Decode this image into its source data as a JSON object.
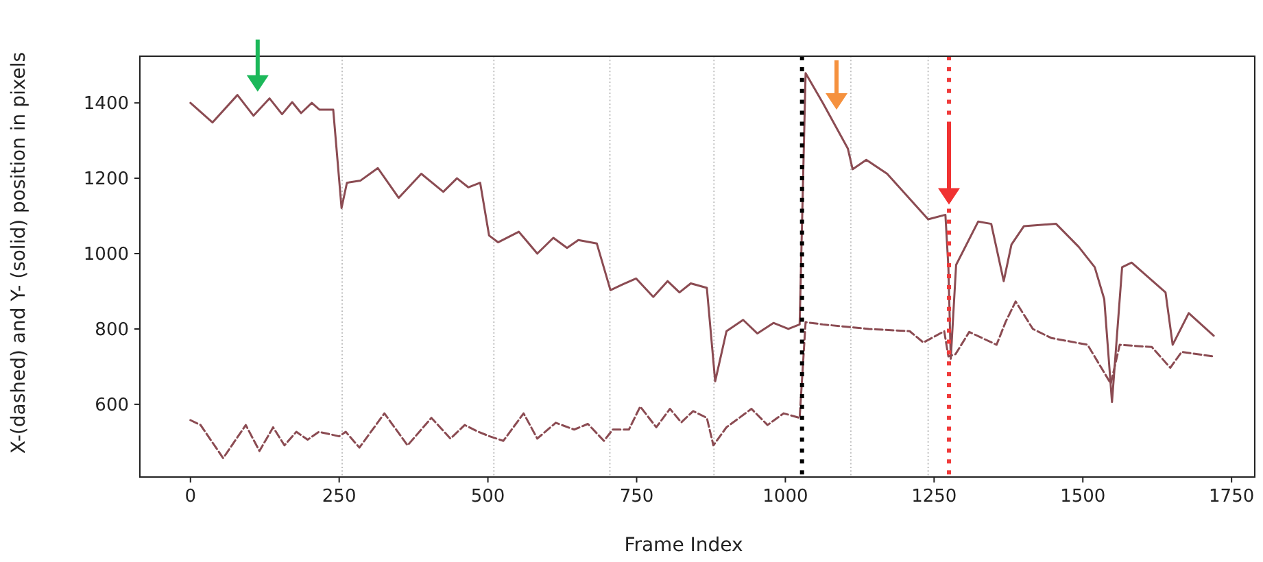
{
  "chart_data": {
    "type": "line",
    "xlabel": "Frame Index",
    "ylabel": "X-(dashed) and Y- (solid) position in pixels",
    "xlim": [
      -85,
      1789
    ],
    "ylim": [
      407,
      1524
    ],
    "xticks": [
      0,
      250,
      500,
      750,
      1000,
      1250,
      1500,
      1750
    ],
    "yticks": [
      600,
      800,
      1000,
      1200,
      1400
    ],
    "grid": false,
    "series": [
      {
        "color": "#8b4b52",
        "line_style": "solid",
        "x": [
          0,
          37,
          79,
          106,
          133,
          154,
          171,
          186,
          204,
          217,
          240,
          254,
          263,
          286,
          315,
          350,
          388,
          425,
          448,
          467,
          487,
          502,
          517,
          552,
          583,
          610,
          633,
          652,
          683,
          706,
          726,
          749,
          778,
          802,
          822,
          841,
          868,
          882,
          901,
          929,
          953,
          980,
          1005,
          1024,
          1034,
          1063,
          1105,
          1113,
          1136,
          1171,
          1240,
          1269,
          1274,
          1278,
          1287,
          1324,
          1346,
          1367,
          1380,
          1401,
          1455,
          1493,
          1520,
          1536,
          1549,
          1566,
          1582,
          1639,
          1651,
          1678,
          1720
        ],
        "values": [
          1400,
          1348,
          1421,
          1366,
          1412,
          1370,
          1402,
          1373,
          1400,
          1382,
          1382,
          1121,
          1188,
          1194,
          1227,
          1148,
          1212,
          1164,
          1200,
          1176,
          1188,
          1048,
          1030,
          1058,
          1000,
          1042,
          1015,
          1036,
          1027,
          903,
          918,
          934,
          885,
          927,
          897,
          921,
          909,
          661,
          794,
          824,
          788,
          816,
          800,
          812,
          1479,
          1400,
          1279,
          1224,
          1249,
          1212,
          1091,
          1103,
          964,
          721,
          970,
          1085,
          1079,
          927,
          1024,
          1073,
          1079,
          1018,
          964,
          879,
          606,
          964,
          976,
          897,
          758,
          842,
          782
        ]
      },
      {
        "color": "#8b4b52",
        "line_style": "dashed",
        "x": [
          0,
          17,
          55,
          93,
          116,
          139,
          158,
          178,
          197,
          216,
          250,
          261,
          284,
          326,
          365,
          405,
          437,
          461,
          484,
          503,
          526,
          560,
          583,
          614,
          645,
          668,
          695,
          710,
          737,
          756,
          783,
          806,
          825,
          845,
          868,
          879,
          901,
          943,
          970,
          997,
          1024,
          1034,
          1063,
          1140,
          1209,
          1232,
          1267,
          1274,
          1286,
          1309,
          1355,
          1370,
          1387,
          1416,
          1447,
          1508,
          1531,
          1547,
          1562,
          1616,
          1647,
          1666,
          1720
        ],
        "values": [
          558,
          545,
          457,
          545,
          476,
          539,
          491,
          527,
          506,
          527,
          515,
          527,
          485,
          576,
          491,
          564,
          509,
          545,
          527,
          515,
          503,
          576,
          509,
          551,
          533,
          548,
          503,
          533,
          533,
          594,
          539,
          588,
          552,
          582,
          564,
          491,
          539,
          588,
          545,
          576,
          564,
          818,
          812,
          800,
          794,
          764,
          794,
          727,
          733,
          792,
          758,
          818,
          873,
          800,
          776,
          758,
          697,
          655,
          758,
          752,
          697,
          739,
          727
        ]
      }
    ],
    "ref_lines": [
      {
        "axis": "x",
        "value": 255,
        "color": "#c0c0c0",
        "line_style": "dotted"
      },
      {
        "axis": "x",
        "value": 510,
        "color": "#c0c0c0",
        "line_style": "dotted"
      },
      {
        "axis": "x",
        "value": 705,
        "color": "#c0c0c0",
        "line_style": "dotted"
      },
      {
        "axis": "x",
        "value": 880,
        "color": "#c0c0c0",
        "line_style": "dotted"
      },
      {
        "axis": "x",
        "value": 1110,
        "color": "#c0c0c0",
        "line_style": "dotted"
      },
      {
        "axis": "x",
        "value": 1240,
        "color": "#c0c0c0",
        "line_style": "dotted"
      },
      {
        "axis": "x",
        "value": 1028,
        "color": "#000000",
        "line_style": "dotted"
      },
      {
        "axis": "x",
        "value": 1275,
        "color": "#f03a3a",
        "line_style": "dotted"
      }
    ]
  }
}
